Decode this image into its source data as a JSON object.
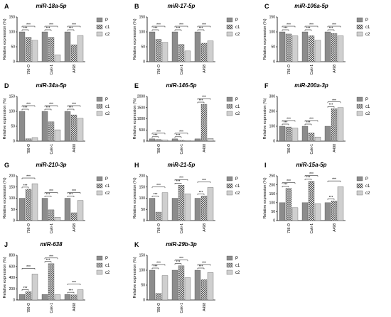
{
  "figure": {
    "legend": [
      "P",
      "c1",
      "c2"
    ],
    "colors": [
      "#8c8c8c",
      "#5e5e5e",
      "#cfcfcf"
    ]
  },
  "chart_data": [
    {
      "type": "bar",
      "letter": "A",
      "title": "miR-18a-5p",
      "ylabel": "Relative expression (%)",
      "categories": [
        "786-O",
        "Caki-1",
        "A498"
      ],
      "ylim": [
        0,
        150
      ],
      "yticks": [
        0,
        50,
        100,
        150
      ],
      "series": [
        {
          "name": "P",
          "values": [
            100,
            100,
            100
          ]
        },
        {
          "name": "c1",
          "values": [
            82,
            82,
            57
          ]
        },
        {
          "name": "c2",
          "values": [
            72,
            23,
            88
          ]
        }
      ],
      "significance": [
        "***",
        "***",
        "***",
        "***",
        "***",
        "***"
      ]
    },
    {
      "type": "bar",
      "letter": "B",
      "title": "miR-17-5p",
      "ylabel": "Relative expression (%)",
      "categories": [
        "786-O",
        "Caki-1",
        "A498"
      ],
      "ylim": [
        0,
        150
      ],
      "yticks": [
        0,
        50,
        100,
        150
      ],
      "series": [
        {
          "name": "P",
          "values": [
            100,
            100,
            100
          ]
        },
        {
          "name": "c1",
          "values": [
            75,
            58,
            62
          ]
        },
        {
          "name": "c2",
          "values": [
            65,
            36,
            70
          ]
        }
      ],
      "significance": [
        "***",
        "***",
        "***",
        "***",
        "***",
        "***"
      ]
    },
    {
      "type": "bar",
      "letter": "C",
      "title": "miR-106a-5p",
      "ylabel": "Relative expression (%)",
      "categories": [
        "786-O",
        "Caki-1",
        "A498"
      ],
      "ylim": [
        0,
        150
      ],
      "yticks": [
        0,
        50,
        100,
        150
      ],
      "series": [
        {
          "name": "P",
          "values": [
            100,
            100,
            100
          ]
        },
        {
          "name": "c1",
          "values": [
            93,
            87,
            95
          ]
        },
        {
          "name": "c2",
          "values": [
            87,
            72,
            87
          ]
        }
      ],
      "significance": [
        "***",
        "***",
        "***",
        "***",
        "***",
        "***"
      ]
    },
    {
      "type": "bar",
      "letter": "D",
      "title": "miR-34a-5p",
      "ylabel": "Relative expression (%)",
      "categories": [
        "786-O",
        "Caki-1",
        "A498"
      ],
      "ylim": [
        0,
        150
      ],
      "yticks": [
        0,
        50,
        100,
        150
      ],
      "series": [
        {
          "name": "P",
          "values": [
            100,
            100,
            100
          ]
        },
        {
          "name": "c1",
          "values": [
            8,
            65,
            88
          ]
        },
        {
          "name": "c2",
          "values": [
            12,
            38,
            77
          ]
        }
      ],
      "significance": [
        "***",
        "***",
        "***",
        "***",
        "***",
        "***"
      ]
    },
    {
      "type": "bar",
      "letter": "E",
      "title": "miR-146-5p",
      "ylabel": "Relative expression (%)",
      "categories": [
        "786-O",
        "Caki-1",
        "A498"
      ],
      "ylim": [
        0,
        2000
      ],
      "yticks": [
        0,
        500,
        1000,
        1500,
        2000
      ],
      "series": [
        {
          "name": "P",
          "values": [
            100,
            100,
            100
          ]
        },
        {
          "name": "c1",
          "values": [
            75,
            40,
            1650
          ]
        },
        {
          "name": "c2",
          "values": [
            60,
            30,
            120
          ]
        }
      ],
      "significance": [
        "***",
        "***",
        "***",
        "***",
        "***",
        "***"
      ]
    },
    {
      "type": "bar",
      "letter": "F",
      "title": "miR-200a-3p",
      "ylabel": "Relative expression (%)",
      "categories": [
        "786-O",
        "Caki-1",
        "A498"
      ],
      "ylim": [
        0,
        300
      ],
      "yticks": [
        0,
        100,
        200,
        300
      ],
      "series": [
        {
          "name": "P",
          "values": [
            100,
            100,
            100
          ]
        },
        {
          "name": "c1",
          "values": [
            95,
            55,
            218
          ]
        },
        {
          "name": "c2",
          "values": [
            88,
            28,
            225
          ]
        }
      ],
      "significance": [
        "***",
        "***",
        "***",
        "***",
        "***",
        "***"
      ]
    },
    {
      "type": "bar",
      "letter": "G",
      "title": "miR-210-3p",
      "ylabel": "Relative expression (%)",
      "categories": [
        "786-O",
        "Caki-1",
        "A498"
      ],
      "ylim": [
        0,
        200
      ],
      "yticks": [
        0,
        50,
        100,
        150,
        200
      ],
      "series": [
        {
          "name": "P",
          "values": [
            100,
            100,
            100
          ]
        },
        {
          "name": "c1",
          "values": [
            140,
            48,
            35
          ]
        },
        {
          "name": "c2",
          "values": [
            165,
            15,
            90
          ]
        }
      ],
      "significance": [
        "***",
        "***",
        "***",
        "***",
        "***",
        "***"
      ]
    },
    {
      "type": "bar",
      "letter": "H",
      "title": "miR-21-5p",
      "ylabel": "Relative expression (%)",
      "categories": [
        "786-O",
        "Caki-1",
        "A498"
      ],
      "ylim": [
        0,
        200
      ],
      "yticks": [
        0,
        50,
        100,
        150,
        200
      ],
      "series": [
        {
          "name": "P",
          "values": [
            100,
            100,
            100
          ]
        },
        {
          "name": "c1",
          "values": [
            38,
            158,
            110
          ]
        },
        {
          "name": "c2",
          "values": [
            125,
            120,
            148
          ]
        }
      ],
      "significance": [
        "***",
        "***",
        "***",
        "***",
        "***",
        "***"
      ]
    },
    {
      "type": "bar",
      "letter": "I",
      "title": "miR-15a-5p",
      "ylabel": "Relative expression (%)",
      "categories": [
        "786-O",
        "Caki-1",
        "A498"
      ],
      "ylim": [
        0,
        250
      ],
      "yticks": [
        0,
        50,
        100,
        150,
        200,
        250
      ],
      "series": [
        {
          "name": "P",
          "values": [
            100,
            100,
            100
          ]
        },
        {
          "name": "c1",
          "values": [
            180,
            220,
            110
          ]
        },
        {
          "name": "c2",
          "values": [
            72,
            95,
            190
          ]
        }
      ],
      "significance": [
        "***",
        "***",
        "***",
        "***",
        "***",
        "***"
      ]
    },
    {
      "type": "bar",
      "letter": "J",
      "title": "miR-638",
      "ylabel": "Relative expression (%)",
      "categories": [
        "786-O",
        "Caki-1",
        "A498"
      ],
      "ylim": [
        0,
        800
      ],
      "yticks": [
        0,
        200,
        400,
        600,
        800
      ],
      "series": [
        {
          "name": "P",
          "values": [
            100,
            100,
            100
          ]
        },
        {
          "name": "c1",
          "values": [
            148,
            650,
            92
          ]
        },
        {
          "name": "c2",
          "values": [
            465,
            95,
            185
          ]
        }
      ],
      "significance": [
        "***",
        "***",
        "***",
        "***",
        "***",
        "***"
      ]
    },
    {
      "type": "bar",
      "letter": "K",
      "title": "miR-29b-3p",
      "ylabel": "Relative expression (%)",
      "categories": [
        "786-O",
        "Caki-1",
        "A498"
      ],
      "ylim": [
        0,
        150
      ],
      "yticks": [
        0,
        50,
        100,
        150
      ],
      "series": [
        {
          "name": "P",
          "values": [
            100,
            100,
            100
          ]
        },
        {
          "name": "c1",
          "values": [
            22,
            115,
            68
          ]
        },
        {
          "name": "c2",
          "values": [
            82,
            75,
            92
          ]
        }
      ],
      "significance": [
        "***",
        "***",
        "***",
        "***",
        "***",
        "***"
      ]
    }
  ]
}
